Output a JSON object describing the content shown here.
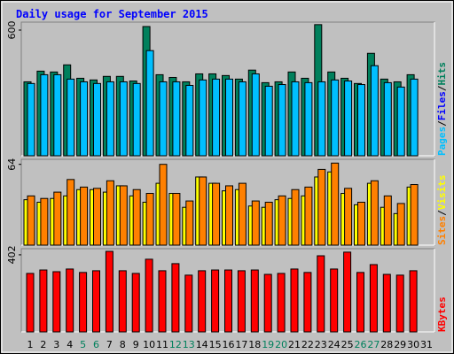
{
  "chart_data": [
    {
      "type": "bar",
      "title": "Daily usage for September 2015",
      "ylim": [
        0,
        638
      ],
      "yticks": [
        600
      ],
      "separator": "/",
      "series": [
        {
          "name": "Hits",
          "color": "#00805c",
          "values": [
            353,
            404,
            400,
            434,
            370,
            362,
            379,
            379,
            357,
            617,
            387,
            374,
            353,
            391,
            391,
            383,
            366,
            409,
            349,
            353,
            400,
            370,
            626,
            400,
            370,
            345,
            489,
            366,
            353,
            387,
            null
          ]
        },
        {
          "name": "Files",
          "color": "#0000ff"
        },
        {
          "name": "Pages",
          "color": "#00bfff",
          "values": [
            345,
            387,
            387,
            366,
            353,
            345,
            353,
            353,
            345,
            502,
            353,
            353,
            336,
            362,
            366,
            366,
            353,
            391,
            332,
            340,
            353,
            349,
            353,
            362,
            357,
            340,
            430,
            349,
            328,
            366,
            null
          ]
        }
      ]
    },
    {
      "type": "bar",
      "ylim": [
        0,
        68
      ],
      "yticks": [
        64
      ],
      "separator": "/",
      "series": [
        {
          "name": "Visits",
          "color": "#ffff00",
          "values": [
            36,
            34,
            37,
            39,
            44,
            44,
            42,
            47,
            39,
            34,
            49,
            41,
            30,
            54,
            49,
            43,
            44,
            31,
            30,
            36,
            37,
            39,
            54,
            58,
            41,
            32,
            49,
            30,
            25,
            46,
            null
          ]
        },
        {
          "name": "Sites",
          "color": "#ff8000",
          "values": [
            39,
            37,
            42,
            52,
            46,
            45,
            51,
            47,
            44,
            41,
            64,
            41,
            35,
            54,
            49,
            47,
            49,
            35,
            34,
            39,
            44,
            46,
            60,
            65,
            45,
            34,
            51,
            39,
            33,
            48,
            null
          ]
        }
      ]
    },
    {
      "type": "bar",
      "ylim": [
        0,
        434
      ],
      "yticks": [
        402
      ],
      "categories": [
        "1",
        "2",
        "3",
        "4",
        "5",
        "6",
        "7",
        "8",
        "9",
        "10",
        "11",
        "12",
        "13",
        "14",
        "15",
        "16",
        "17",
        "18",
        "19",
        "20",
        "21",
        "22",
        "23",
        "24",
        "25",
        "26",
        "27",
        "28",
        "29",
        "30",
        "31"
      ],
      "highlight_categories": [
        4,
        5,
        11,
        12,
        18,
        19,
        25,
        26
      ],
      "highlight_color": "#00805c",
      "series": [
        {
          "name": "KBytes",
          "color": "#ff0000",
          "values": [
            305,
            323,
            314,
            328,
            310,
            319,
            420,
            319,
            305,
            379,
            319,
            356,
            296,
            319,
            323,
            323,
            319,
            323,
            300,
            305,
            328,
            310,
            397,
            328,
            416,
            310,
            351,
            300,
            296,
            319,
            null
          ]
        }
      ]
    }
  ]
}
